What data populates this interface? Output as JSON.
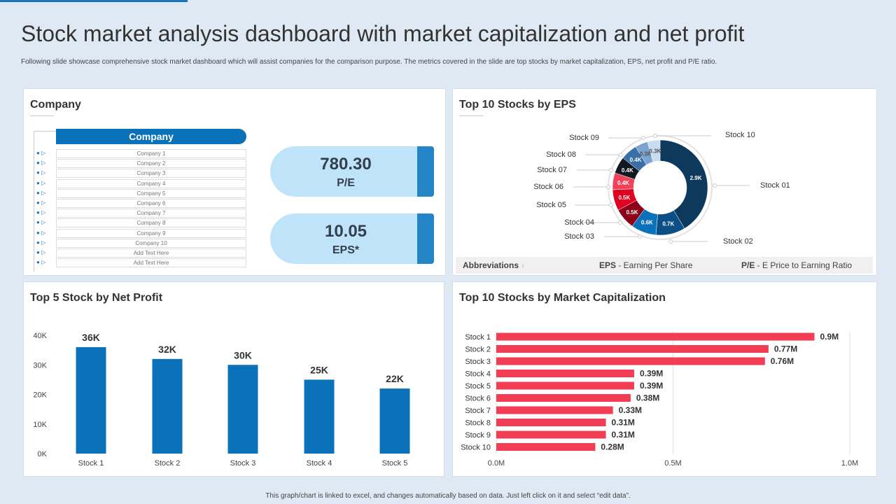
{
  "header": {
    "title": "Stock market analysis dashboard with market capitalization and net profit",
    "subtitle": "Following slide showcase comprehensive stock market dashboard which will assist companies for the comparison purpose. The metrics covered in the slide are top stocks by market capitalization, EPS,  net profit and P/E  ratio."
  },
  "company_panel": {
    "title": "Company",
    "list_header": "Company",
    "rows": [
      "Company  1",
      "Company  2",
      "Company  3",
      "Company  4",
      "Company  5",
      "Company  6",
      "Company  7",
      "Company  8",
      "Company  9",
      "Company  10",
      "Add Text Here",
      "Add Text Here"
    ],
    "marker_icon": "triangle-right-icon",
    "kpis": [
      {
        "value": "780.30",
        "label": "P/E"
      },
      {
        "value": "10.05",
        "label": "EPS*"
      }
    ]
  },
  "eps_panel": {
    "title": "Top 10 Stocks by EPS",
    "abbreviations_label": "Abbreviations",
    "abbreviations_chevron": "›",
    "abbr_eps_key": "EPS",
    "abbr_eps_text": " - Earning Per Share",
    "abbr_pe_key": "P/E",
    "abbr_pe_text": " - E Price to Earning Ratio"
  },
  "net_profit_panel": {
    "title": "Top 5 Stock by Net Profit"
  },
  "market_cap_panel": {
    "title": "Top 10 Stocks by Market Capitalization"
  },
  "footer": "This graph/chart is linked to excel, and changes automatically based on data. Just left click on it and select “edit data”.",
  "chart_data": [
    {
      "type": "pie",
      "donut": true,
      "categories": [
        "Stock 01",
        "Stock 02",
        "Stock 03",
        "Stock 04",
        "Stock 05",
        "Stock 06",
        "Stock 07",
        "Stock 08",
        "Stock 09",
        "Stock 10"
      ],
      "values": [
        2.9,
        0.7,
        0.6,
        0.5,
        0.5,
        0.4,
        0.4,
        0.4,
        0.3,
        0.3
      ],
      "data_labels": [
        "2.9K",
        "0.7K",
        "0.6K",
        "0.5K",
        "0.5K",
        "0.4K",
        "0.4K",
        "0.4K",
        "0.3K",
        "0.3K"
      ],
      "colors": [
        "#0d3a5c",
        "#0b4f86",
        "#0b72b9",
        "#8b0018",
        "#e00020",
        "#f0435a",
        "#111820",
        "#3a6fa8",
        "#7aa3cf",
        "#c9dbee"
      ]
    },
    {
      "type": "bar",
      "categories": [
        "Stock 1",
        "Stock 2",
        "Stock 3",
        "Stock 4",
        "Stock 5"
      ],
      "values": [
        36000,
        32000,
        30000,
        25000,
        22000
      ],
      "data_labels": [
        "36K",
        "32K",
        "30K",
        "25K",
        "22K"
      ],
      "ylim": [
        0,
        40000
      ],
      "yticks": [
        "0K",
        "10K",
        "20K",
        "30K",
        "40K"
      ],
      "color": "#0b72b9",
      "grid": false
    },
    {
      "type": "bar",
      "orientation": "horizontal",
      "categories": [
        "Stock 1",
        "Stock 2",
        "Stock 3",
        "Stock 4",
        "Stock 5",
        "Stock 6",
        "Stock 7",
        "Stock 8",
        "Stock 9",
        "Stock 10"
      ],
      "values": [
        0.9,
        0.77,
        0.76,
        0.39,
        0.39,
        0.38,
        0.33,
        0.31,
        0.31,
        0.28
      ],
      "data_labels": [
        "0.9M",
        "0.77M",
        "0.76M",
        "0.39M",
        "0.39M",
        "0.38M",
        "0.33M",
        "0.31M",
        "0.31M",
        "0.28M"
      ],
      "xlim": [
        0,
        1.0
      ],
      "xticks": [
        "0.0M",
        "0.5M",
        "1.0M"
      ],
      "color": "#f23d55",
      "grid": true
    }
  ]
}
